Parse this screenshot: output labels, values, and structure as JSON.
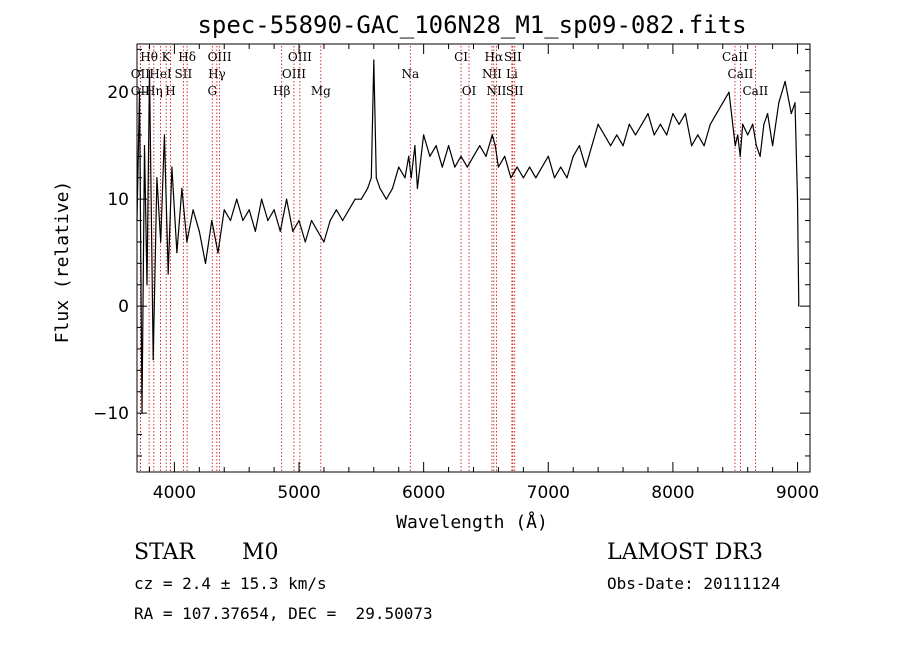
{
  "chart_data": {
    "type": "line",
    "title": "spec-55890-GAC_106N28_M1_sp09-082.fits",
    "xlabel": "Wavelength (Å)",
    "ylabel": "Flux (relative)",
    "xlim": [
      3700,
      9100
    ],
    "ylim": [
      -15.5,
      24.5
    ],
    "xticks": [
      4000,
      5000,
      6000,
      7000,
      8000,
      9000
    ],
    "yticks": [
      -10,
      0,
      10,
      20
    ],
    "x_minor_step": 200,
    "y_minor_step": 2,
    "grid": false,
    "line_color": "#000000",
    "marker_color": "#cc0000",
    "series": [
      {
        "name": "flux",
        "x": [
          3700,
          3720,
          3740,
          3760,
          3780,
          3800,
          3830,
          3860,
          3890,
          3920,
          3950,
          3980,
          4020,
          4060,
          4100,
          4150,
          4200,
          4250,
          4300,
          4350,
          4400,
          4450,
          4500,
          4550,
          4600,
          4650,
          4700,
          4750,
          4800,
          4850,
          4900,
          4950,
          5000,
          5050,
          5100,
          5150,
          5200,
          5250,
          5300,
          5350,
          5400,
          5450,
          5500,
          5550,
          5580,
          5600,
          5620,
          5650,
          5700,
          5750,
          5800,
          5850,
          5880,
          5900,
          5930,
          5950,
          6000,
          6050,
          6100,
          6150,
          6200,
          6250,
          6300,
          6350,
          6400,
          6450,
          6500,
          6550,
          6575,
          6600,
          6650,
          6700,
          6750,
          6800,
          6850,
          6900,
          6950,
          7000,
          7050,
          7100,
          7150,
          7200,
          7250,
          7300,
          7350,
          7400,
          7450,
          7500,
          7550,
          7600,
          7650,
          7700,
          7750,
          7800,
          7850,
          7900,
          7950,
          8000,
          8050,
          8100,
          8150,
          8200,
          8250,
          8300,
          8350,
          8400,
          8450,
          8500,
          8520,
          8540,
          8560,
          8600,
          8640,
          8670,
          8700,
          8730,
          8760,
          8800,
          8850,
          8900,
          8950,
          8980,
          9000,
          9010
        ],
        "values": [
          8,
          20,
          -10,
          15,
          2,
          22,
          -5,
          12,
          6,
          16,
          3,
          13,
          5,
          11,
          6,
          9,
          7,
          4,
          8,
          5,
          9,
          8,
          10,
          8,
          9,
          7,
          10,
          8,
          9,
          7,
          10,
          7,
          8,
          6,
          8,
          7,
          6,
          8,
          9,
          8,
          9,
          10,
          10,
          11,
          12,
          23,
          12,
          11,
          10,
          11,
          13,
          12,
          14,
          12,
          15,
          11,
          16,
          14,
          15,
          13,
          15,
          13,
          14,
          13,
          14,
          15,
          14,
          16,
          15,
          13,
          14,
          12,
          13,
          12,
          13,
          12,
          13,
          14,
          12,
          13,
          12,
          14,
          15,
          13,
          15,
          17,
          16,
          15,
          16,
          15,
          17,
          16,
          17,
          18,
          16,
          17,
          16,
          18,
          17,
          18,
          15,
          16,
          15,
          17,
          18,
          19,
          20,
          15,
          16,
          14,
          17,
          16,
          17,
          15,
          14,
          17,
          18,
          15,
          19,
          21,
          18,
          19,
          10,
          0
        ]
      }
    ],
    "lines": [
      {
        "label": "Hθ",
        "w": 3797,
        "row": 0
      },
      {
        "label": "K",
        "w": 3934,
        "row": 0
      },
      {
        "label": "Hδ",
        "w": 4102,
        "row": 0
      },
      {
        "label": "OIII",
        "w": 4363,
        "row": 0
      },
      {
        "label": "OIII",
        "w": 5007,
        "row": 0
      },
      {
        "label": "CI",
        "w": 6300,
        "row": 0
      },
      {
        "label": "Hα",
        "w": 6563,
        "row": 0
      },
      {
        "label": "SII",
        "w": 6716,
        "row": 0
      },
      {
        "label": "CaII",
        "w": 8498,
        "row": 0
      },
      {
        "label": "OII",
        "w": 3727,
        "row": 1
      },
      {
        "label": "HeI",
        "w": 3889,
        "row": 1
      },
      {
        "label": "SII",
        "w": 4072,
        "row": 1
      },
      {
        "label": "Hγ",
        "w": 4341,
        "row": 1
      },
      {
        "label": "OIII",
        "w": 4959,
        "row": 1
      },
      {
        "label": "Na",
        "w": 5893,
        "row": 1
      },
      {
        "label": "NII",
        "w": 6548,
        "row": 1
      },
      {
        "label": "Li",
        "w": 6708,
        "row": 1
      },
      {
        "label": "CaII",
        "w": 8542,
        "row": 1
      },
      {
        "label": "OII",
        "w": 3727,
        "row": 2
      },
      {
        "label": "Hη",
        "w": 3835,
        "row": 2
      },
      {
        "label": "H",
        "w": 3969,
        "row": 2
      },
      {
        "label": "G",
        "w": 4304,
        "row": 2
      },
      {
        "label": "Hβ",
        "w": 4861,
        "row": 2
      },
      {
        "label": "Mg",
        "w": 5175,
        "row": 2
      },
      {
        "label": "OI",
        "w": 6364,
        "row": 2
      },
      {
        "label": "NII",
        "w": 6584,
        "row": 2
      },
      {
        "label": "SII",
        "w": 6731,
        "row": 2
      },
      {
        "label": "CaII",
        "w": 8662,
        "row": 2
      }
    ]
  },
  "info": {
    "class": "STAR",
    "subclass": "M0",
    "survey": "LAMOST DR3",
    "redshift": "cz = 2.4 ± 15.3 km/s",
    "obs_date": "Obs-Date: 20111124",
    "coords": "RA = 107.37654, DEC =  29.50073"
  }
}
